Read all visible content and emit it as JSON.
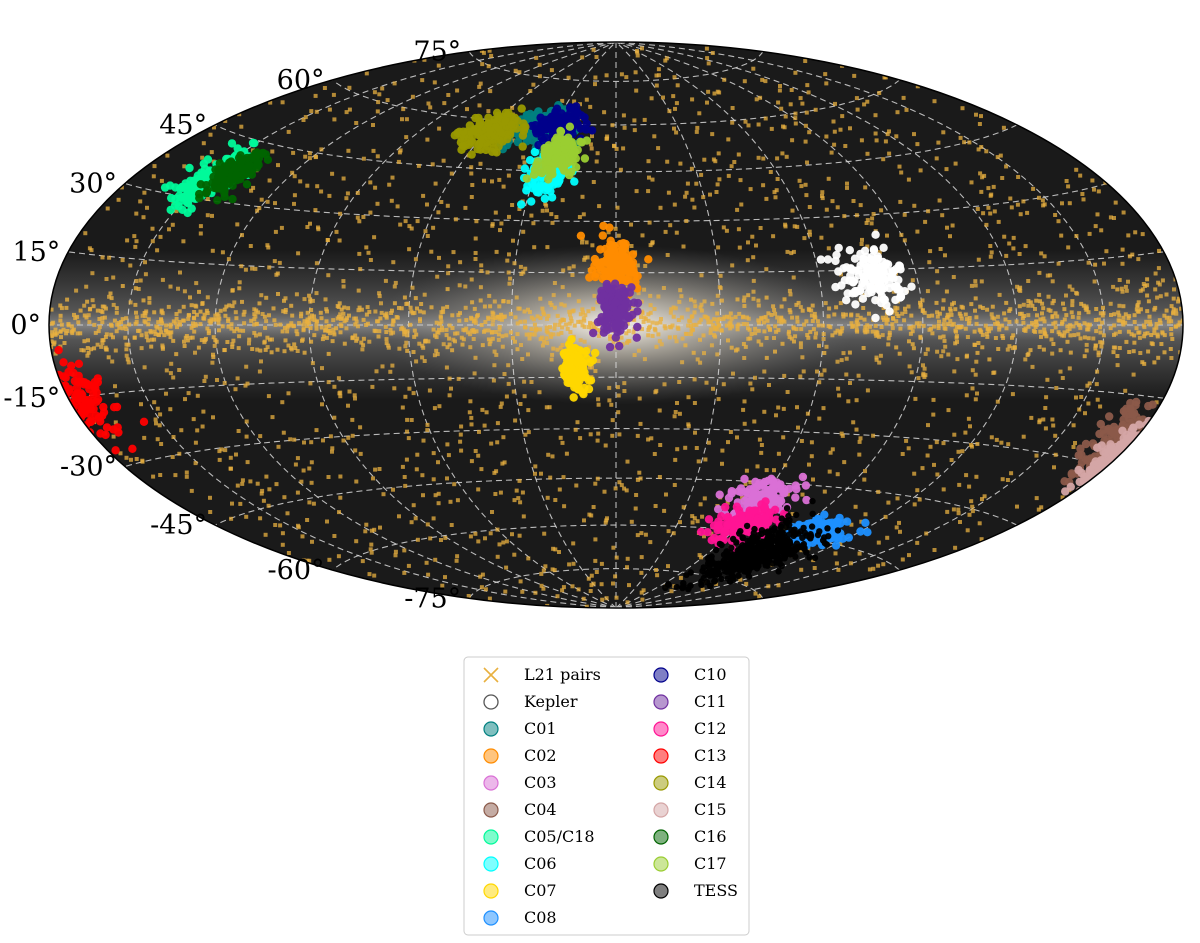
{
  "chart_data": {
    "type": "scatter",
    "projection": "aitoff",
    "grid": true,
    "legend_placement": "bottom-center",
    "background": "Milky Way all-sky image",
    "lat_tick_labels": [
      {
        "text": "75°",
        "value": 75
      },
      {
        "text": "60°",
        "value": 60
      },
      {
        "text": "45°",
        "value": 45
      },
      {
        "text": "30°",
        "value": 30
      },
      {
        "text": "15°",
        "value": 15
      },
      {
        "text": "0°",
        "value": 0
      },
      {
        "text": "-15°",
        "value": -15
      },
      {
        "text": "-30°",
        "value": -30
      },
      {
        "text": "-45°",
        "value": -45
      },
      {
        "text": "-60°",
        "value": -60
      },
      {
        "text": "-75°",
        "value": -75
      }
    ],
    "series": [
      {
        "name": "L21 pairs",
        "marker": "x",
        "color": "#e8b040",
        "distribution": "all-sky, concentrated along galactic plane"
      },
      {
        "name": "Kepler",
        "marker": "o-open",
        "color": "#ffffff",
        "center": [
          -76,
          13.5
        ],
        "spread": [
          5,
          4
        ]
      },
      {
        "name": "C01",
        "marker": "o",
        "color": "#008080",
        "center": [
          38,
          59
        ],
        "spread": [
          8,
          3
        ]
      },
      {
        "name": "C02",
        "marker": "o",
        "color": "#ff8c00",
        "center": [
          0,
          17
        ],
        "spread": [
          3,
          4
        ]
      },
      {
        "name": "C03",
        "marker": "o",
        "color": "#da70d6",
        "center": [
          -60,
          -50
        ],
        "spread": [
          6,
          3
        ]
      },
      {
        "name": "C04",
        "marker": "o",
        "color": "#8b5a4a",
        "center": [
          -173,
          -25
        ],
        "spread": [
          5,
          4
        ]
      },
      {
        "name": "C05/C18",
        "marker": "o",
        "color": "#00fa9a",
        "center": [
          150,
          34
        ],
        "spread": [
          5,
          4
        ]
      },
      {
        "name": "C06",
        "marker": "o",
        "color": "#00ffff",
        "center": [
          25,
          45
        ],
        "spread": [
          4,
          3
        ]
      },
      {
        "name": "C07",
        "marker": "o",
        "color": "#ffd700",
        "center": [
          12,
          -13
        ],
        "spread": [
          2,
          3
        ]
      },
      {
        "name": "C08",
        "marker": "o",
        "color": "#1e90ff",
        "center": [
          -100,
          -58
        ],
        "spread": [
          8,
          2
        ]
      },
      {
        "name": "C10",
        "marker": "o",
        "color": "#00008b",
        "center": [
          28,
          60
        ],
        "spread": [
          5,
          2
        ]
      },
      {
        "name": "C11",
        "marker": "o",
        "color": "#7030a0",
        "center": [
          0,
          5
        ],
        "spread": [
          2.5,
          3.5
        ]
      },
      {
        "name": "C12",
        "marker": "o",
        "color": "#ff1493",
        "center": [
          -62,
          -58
        ],
        "spread": [
          7,
          3
        ]
      },
      {
        "name": "C13",
        "marker": "o",
        "color": "#ff0000",
        "center": [
          178,
          -16
        ],
        "spread": [
          6,
          4
        ]
      },
      {
        "name": "C14",
        "marker": "o",
        "color": "#999900",
        "center": [
          58,
          56
        ],
        "spread": [
          7,
          3
        ]
      },
      {
        "name": "C15",
        "marker": "o",
        "color": "#d4a5a5",
        "center": [
          -178,
          -28
        ],
        "spread": [
          3,
          3
        ]
      },
      {
        "name": "C16",
        "marker": "o",
        "color": "#006400",
        "center": [
          143,
          37
        ],
        "spread": [
          4,
          3
        ]
      },
      {
        "name": "C17",
        "marker": "o",
        "color": "#9acd32",
        "center": [
          23,
          50
        ],
        "spread": [
          4,
          3
        ]
      },
      {
        "name": "TESS",
        "marker": "o",
        "color": "#000000",
        "center": [
          -90,
          -66
        ],
        "spread": [
          12,
          5
        ]
      }
    ]
  }
}
